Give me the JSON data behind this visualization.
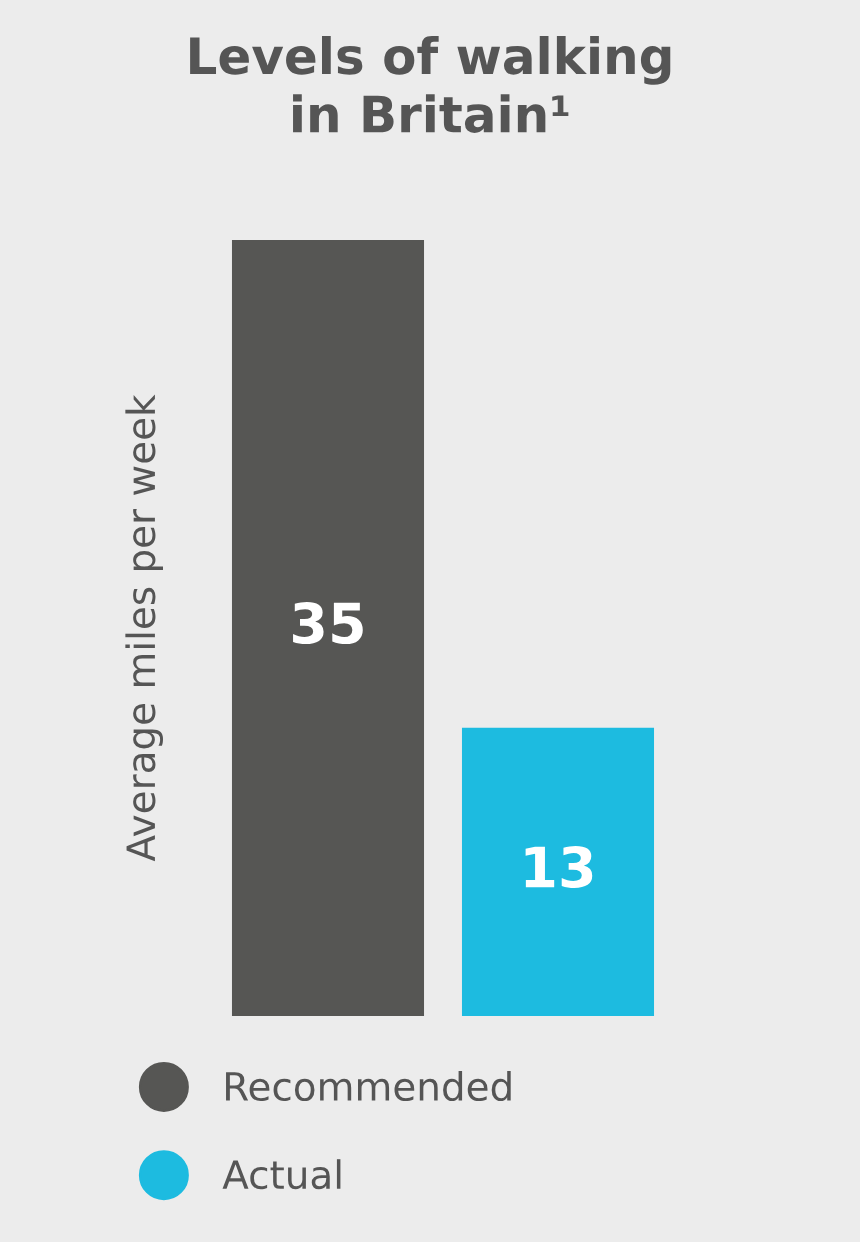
{
  "chart_data": {
    "type": "bar",
    "title": "Levels of walking\nin Britain¹",
    "ylabel": "Average miles per week",
    "categories": [
      null
    ],
    "series": [
      {
        "name": "Recommended",
        "color": "#565654",
        "values": [
          35
        ]
      },
      {
        "name": "Actual",
        "color": "#1dbbe0",
        "values": [
          13
        ]
      }
    ],
    "data_labels": true,
    "legend": "bottom",
    "grid": false
  }
}
